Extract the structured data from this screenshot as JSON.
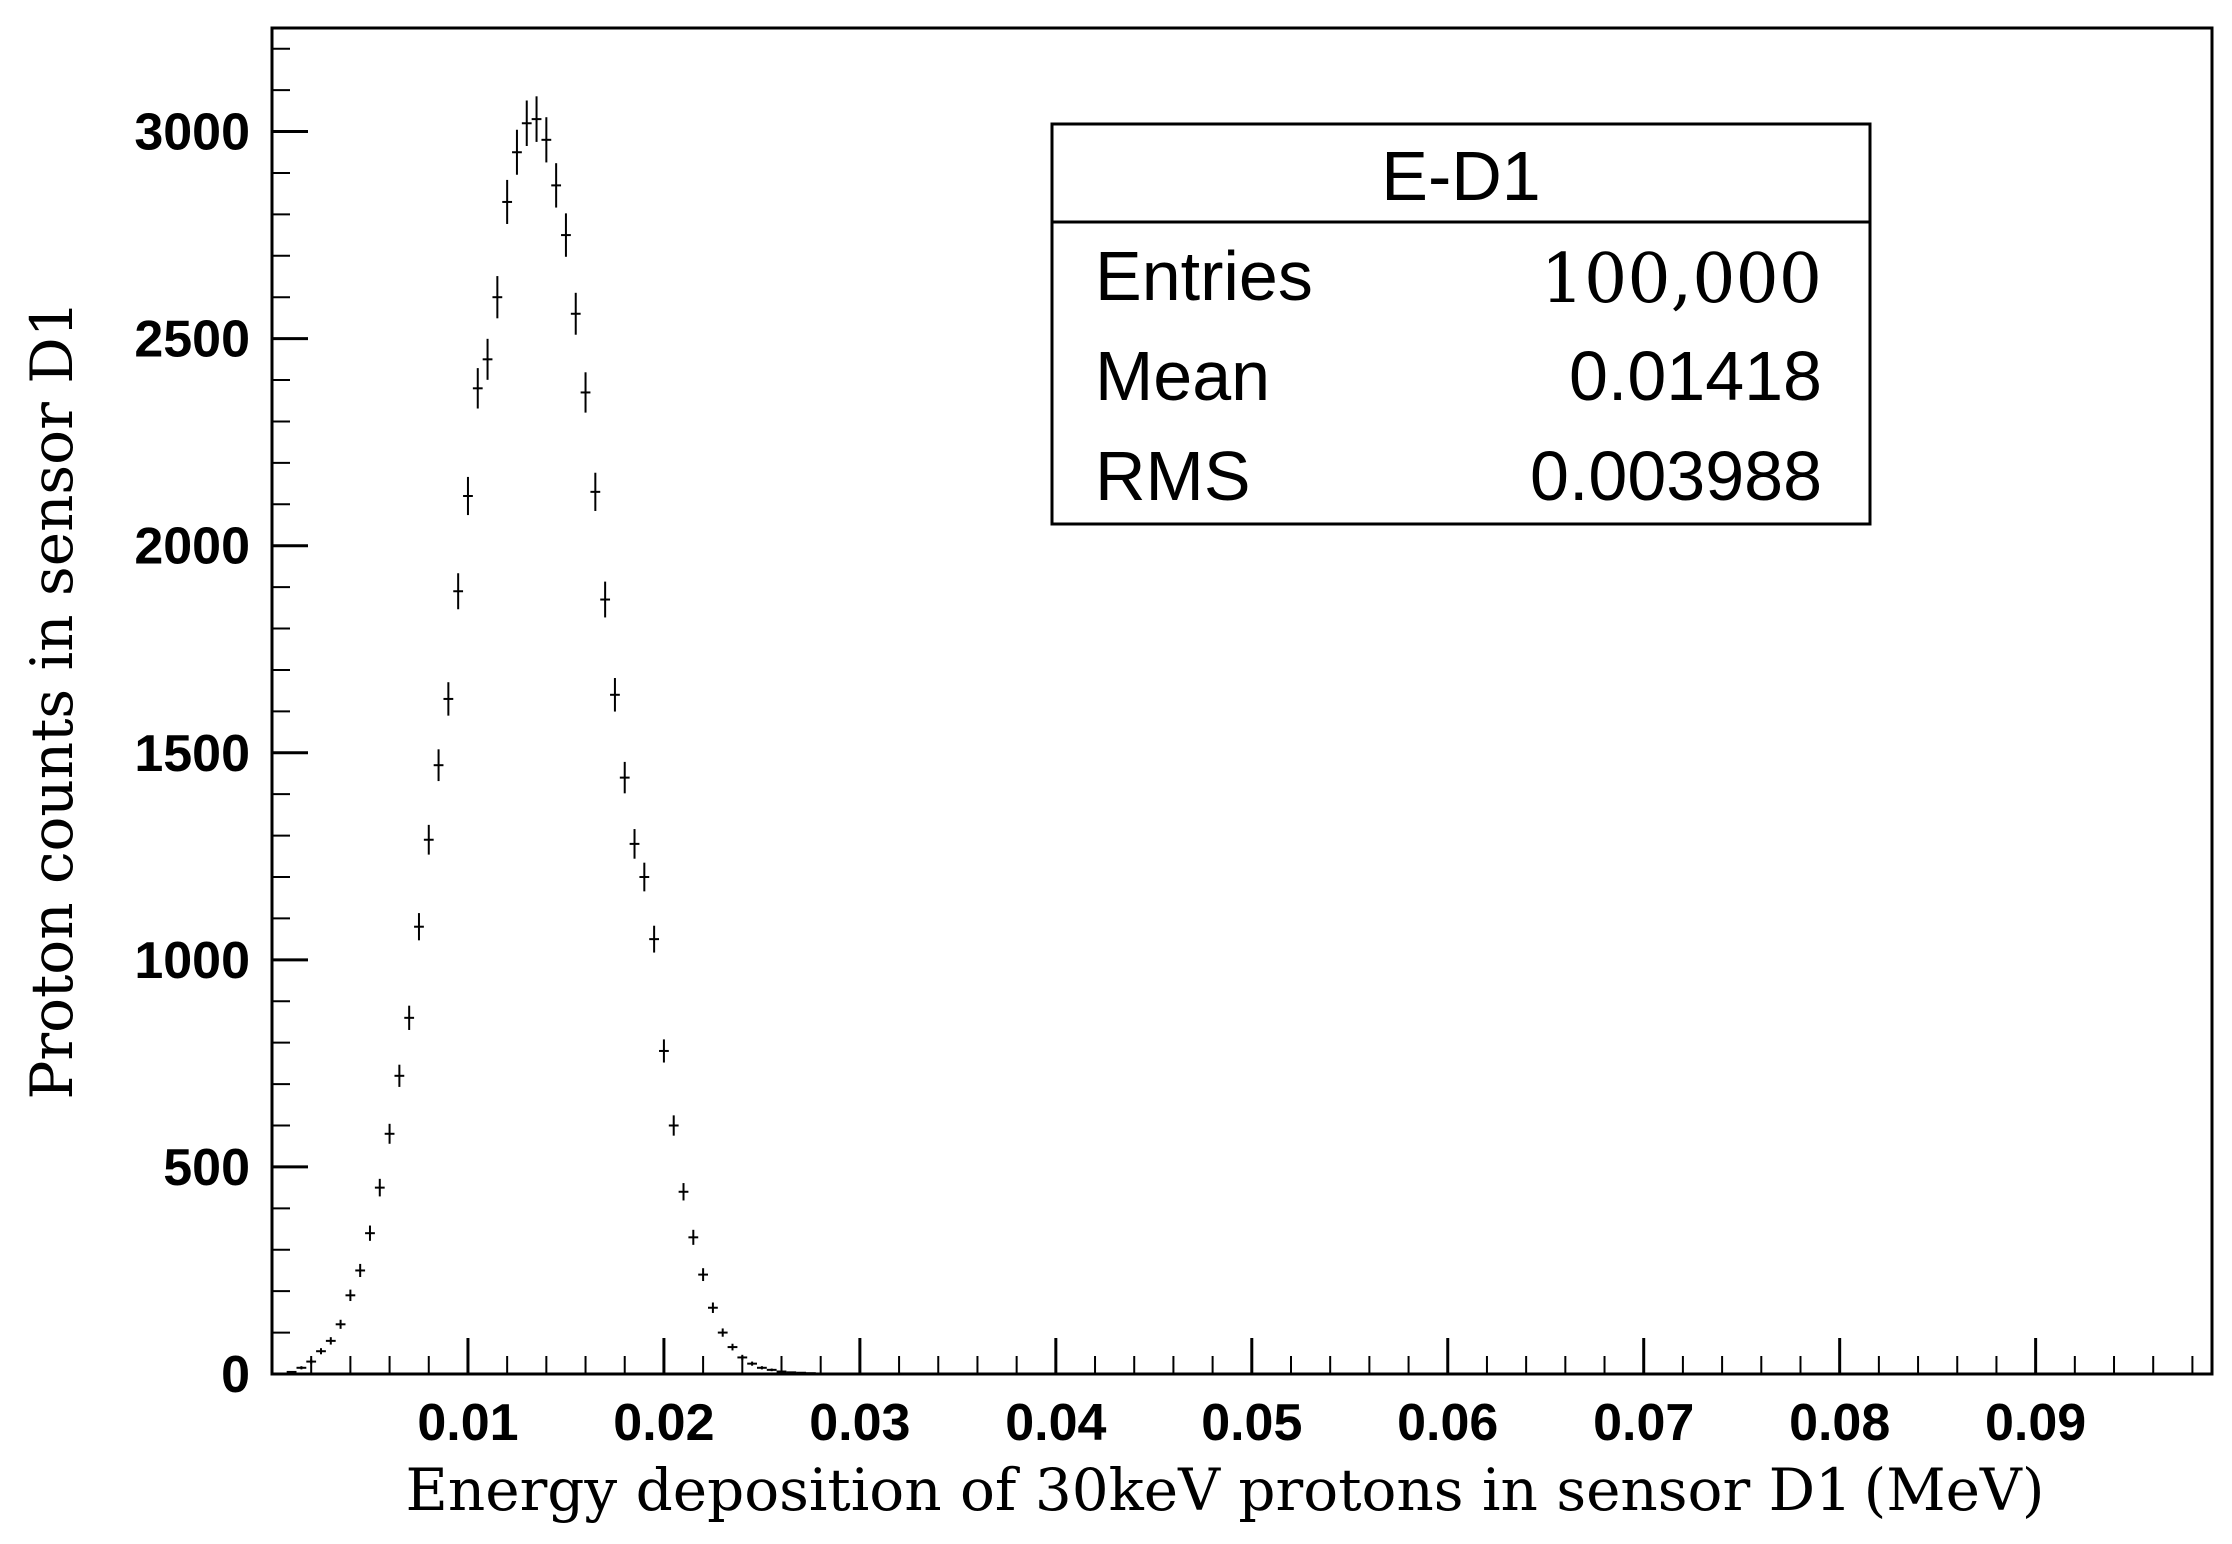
{
  "chart_data": {
    "type": "scatter",
    "title": "",
    "xlabel": "Energy deposition of 30keV protons in sensor D1 (MeV)",
    "ylabel": "Proton counts in sensor D1",
    "xlim": [
      0.0,
      0.099
    ],
    "ylim": [
      0,
      3250
    ],
    "x_ticks": [
      0.01,
      0.02,
      0.03,
      0.04,
      0.05,
      0.06,
      0.07,
      0.08,
      0.09
    ],
    "x_tick_labels": [
      "0.01",
      "0.02",
      "0.03",
      "0.04",
      "0.05",
      "0.06",
      "0.07",
      "0.08",
      "0.09"
    ],
    "y_ticks": [
      0,
      500,
      1000,
      1500,
      2000,
      2500,
      3000
    ],
    "y_tick_labels": [
      "0",
      "500",
      "1000",
      "1500",
      "2000",
      "2500",
      "3000"
    ],
    "grid": false,
    "legend": "none",
    "series": [
      {
        "style": "histogram points with error bars",
        "x": [
          0.001,
          0.0015,
          0.002,
          0.0025,
          0.003,
          0.0035,
          0.004,
          0.0045,
          0.005,
          0.0055,
          0.006,
          0.0065,
          0.007,
          0.0075,
          0.008,
          0.0085,
          0.009,
          0.0095,
          0.01,
          0.0105,
          0.011,
          0.0115,
          0.012,
          0.0125,
          0.013,
          0.0135,
          0.014,
          0.0145,
          0.015,
          0.0155,
          0.016,
          0.0165,
          0.017,
          0.0175,
          0.018,
          0.0185,
          0.019,
          0.0195,
          0.02,
          0.0205,
          0.021,
          0.0215,
          0.022,
          0.0225,
          0.023,
          0.0235,
          0.024,
          0.0245,
          0.025,
          0.0255,
          0.026,
          0.0265,
          0.027,
          0.0275,
          0.028
        ],
        "y": [
          5,
          15,
          30,
          55,
          80,
          120,
          190,
          250,
          340,
          450,
          580,
          720,
          860,
          1080,
          1290,
          1470,
          1630,
          1890,
          2120,
          2380,
          2450,
          2600,
          2830,
          2950,
          3020,
          3030,
          2980,
          2870,
          2750,
          2560,
          2370,
          2130,
          1870,
          1640,
          1440,
          1280,
          1200,
          1050,
          780,
          600,
          440,
          330,
          240,
          160,
          100,
          65,
          40,
          25,
          15,
          10,
          6,
          4,
          3,
          2,
          1
        ]
      }
    ],
    "stats_box": {
      "title": "E-D1",
      "rows": [
        {
          "label": "Entries",
          "value": "100,000"
        },
        {
          "label": "Mean",
          "value": "0.01418"
        },
        {
          "label": "RMS",
          "value": "0.003988"
        }
      ]
    }
  }
}
